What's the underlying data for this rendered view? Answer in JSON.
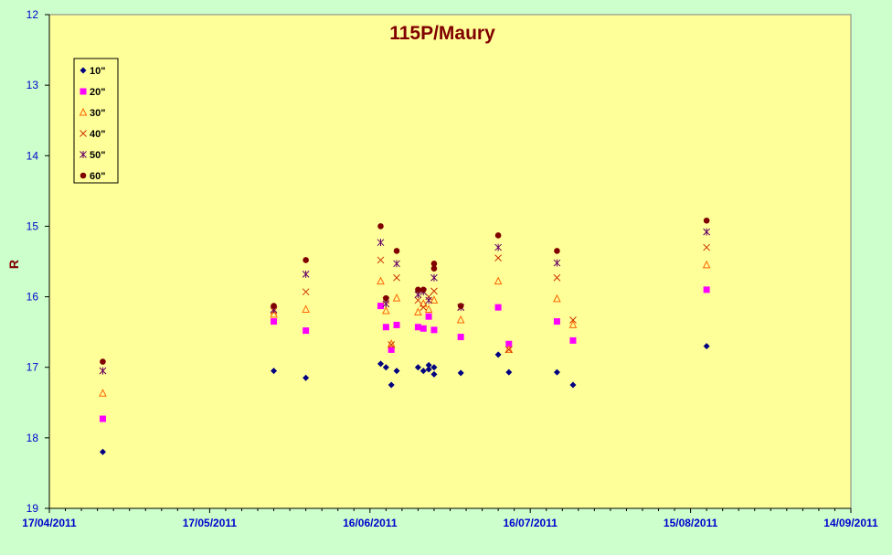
{
  "chart_data": {
    "type": "scatter",
    "title": "115P/Maury",
    "xlabel": "",
    "ylabel": "R",
    "ylim": [
      12,
      19
    ],
    "y_inverted": true,
    "y_ticks": [
      "12",
      "13",
      "14",
      "15",
      "16",
      "17",
      "18",
      "19"
    ],
    "x_ticks": [
      "17/04/2011",
      "17/05/2011",
      "16/06/2011",
      "16/07/2011",
      "15/08/2011",
      "14/09/2011"
    ],
    "legend_position": "top-left",
    "grid": false,
    "colors": {
      "outer_background": "#ccffcc",
      "plot_background": "#ffff99",
      "axis_text": "#0000cc",
      "title_text": "#800000"
    },
    "series": [
      {
        "name": "10\"",
        "marker": "diamond",
        "color": "#000080",
        "x": [
          "2011-04-27",
          "2011-05-29",
          "2011-06-04",
          "2011-06-18",
          "2011-06-19",
          "2011-06-20",
          "2011-06-21",
          "2011-06-25",
          "2011-06-26",
          "2011-06-27",
          "2011-06-27",
          "2011-06-28",
          "2011-06-28",
          "2011-07-03",
          "2011-07-10",
          "2011-07-12",
          "2011-07-21",
          "2011-07-24",
          "2011-08-18"
        ],
        "y": [
          18.2,
          17.05,
          17.15,
          16.95,
          17.0,
          17.25,
          17.05,
          17.0,
          17.05,
          16.97,
          17.03,
          17.0,
          17.1,
          17.08,
          16.82,
          17.07,
          17.07,
          17.25,
          16.7
        ]
      },
      {
        "name": "20\"",
        "marker": "square",
        "color": "#ff00ff",
        "x": [
          "2011-04-27",
          "2011-05-29",
          "2011-06-04",
          "2011-06-18",
          "2011-06-19",
          "2011-06-20",
          "2011-06-21",
          "2011-06-25",
          "2011-06-26",
          "2011-06-27",
          "2011-06-28",
          "2011-07-03",
          "2011-07-10",
          "2011-07-12",
          "2011-07-21",
          "2011-07-24",
          "2011-08-18"
        ],
        "y": [
          17.73,
          16.35,
          16.48,
          16.13,
          16.43,
          16.75,
          16.4,
          16.43,
          16.45,
          16.28,
          16.47,
          16.57,
          16.15,
          16.67,
          16.35,
          16.62,
          15.9
        ]
      },
      {
        "name": "30\"",
        "marker": "triangle",
        "color": "#ff6600",
        "x": [
          "2011-04-27",
          "2011-05-29",
          "2011-06-04",
          "2011-06-18",
          "2011-06-19",
          "2011-06-20",
          "2011-06-21",
          "2011-06-25",
          "2011-06-26",
          "2011-06-27",
          "2011-06-28",
          "2011-07-03",
          "2011-07-10",
          "2011-07-12",
          "2011-07-21",
          "2011-07-24",
          "2011-08-18"
        ],
        "y": [
          17.37,
          16.25,
          16.18,
          15.78,
          16.2,
          16.67,
          16.02,
          16.22,
          16.1,
          16.18,
          16.05,
          16.33,
          15.78,
          16.75,
          16.03,
          16.4,
          15.55
        ]
      },
      {
        "name": "40\"",
        "marker": "x",
        "color": "#cc3300",
        "x": [
          "2011-04-27",
          "2011-05-29",
          "2011-06-04",
          "2011-06-18",
          "2011-06-19",
          "2011-06-20",
          "2011-06-21",
          "2011-06-25",
          "2011-06-26",
          "2011-06-27",
          "2011-06-28",
          "2011-07-03",
          "2011-07-10",
          "2011-07-12",
          "2011-07-21",
          "2011-07-24",
          "2011-08-18"
        ],
        "y": [
          17.05,
          16.2,
          15.93,
          15.48,
          16.05,
          16.68,
          15.73,
          16.05,
          16.15,
          16.0,
          15.92,
          16.15,
          15.45,
          16.75,
          15.73,
          16.33,
          15.3
        ]
      },
      {
        "name": "50\"",
        "marker": "asterisk",
        "color": "#660066",
        "x": [
          "2011-04-27",
          "2011-05-29",
          "2011-06-04",
          "2011-06-18",
          "2011-06-19",
          "2011-06-21",
          "2011-06-25",
          "2011-06-26",
          "2011-06-27",
          "2011-06-28",
          "2011-07-03",
          "2011-07-10",
          "2011-07-21",
          "2011-08-18"
        ],
        "y": [
          17.05,
          16.18,
          15.68,
          15.23,
          16.1,
          15.53,
          15.97,
          15.93,
          16.05,
          15.73,
          16.15,
          15.3,
          15.52,
          15.08
        ]
      },
      {
        "name": "60\"",
        "marker": "circle",
        "color": "#800000",
        "x": [
          "2011-04-27",
          "2011-05-29",
          "2011-06-04",
          "2011-06-18",
          "2011-06-19",
          "2011-06-21",
          "2011-06-25",
          "2011-06-26",
          "2011-06-28",
          "2011-06-28",
          "2011-07-03",
          "2011-07-10",
          "2011-07-21",
          "2011-08-18"
        ],
        "y": [
          16.92,
          16.13,
          15.48,
          15.0,
          16.02,
          15.35,
          15.9,
          15.9,
          15.53,
          15.6,
          16.13,
          15.13,
          15.35,
          14.92
        ]
      }
    ]
  }
}
